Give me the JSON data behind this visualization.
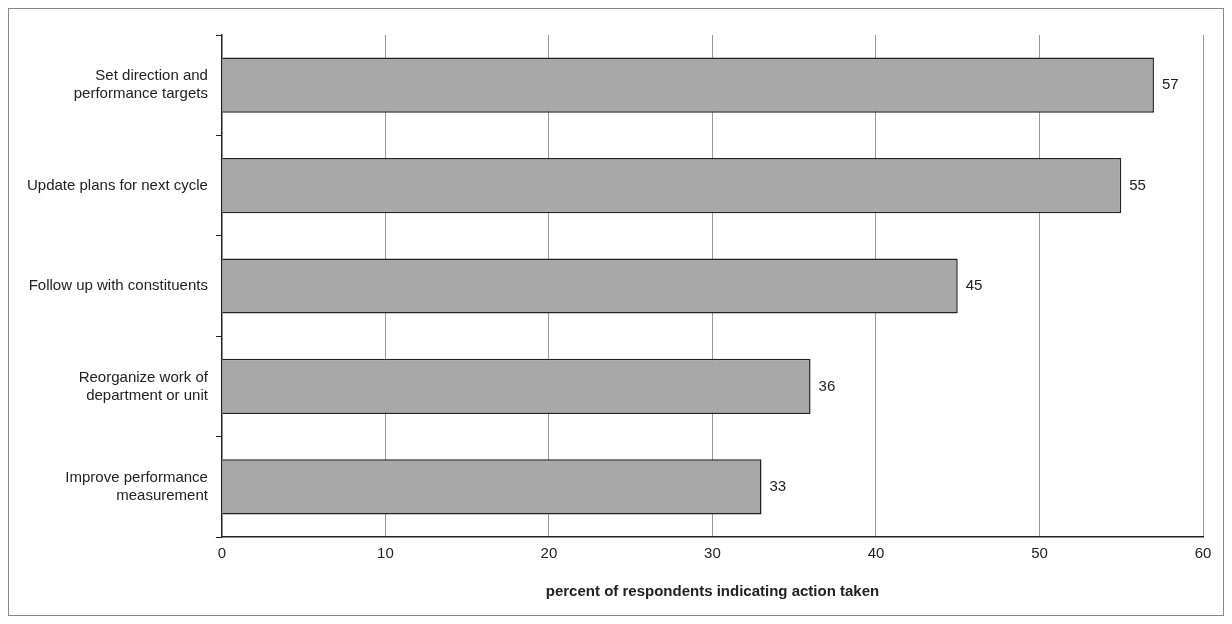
{
  "chart_data": {
    "type": "bar",
    "orientation": "horizontal",
    "categories": [
      "Set direction and performance targets",
      "Update plans for next cycle",
      "Follow up with constituents",
      "Reorganize work of department or unit",
      "Improve performance measurement"
    ],
    "values": [
      57,
      55,
      45,
      36,
      33
    ],
    "color": "#a8a8a8",
    "xlim": [
      0,
      60
    ],
    "xticks": [
      0,
      10,
      20,
      30,
      40,
      50,
      60
    ],
    "xlabel": "percent of respondents indicating action taken",
    "grid": "x",
    "data_labels": true
  }
}
